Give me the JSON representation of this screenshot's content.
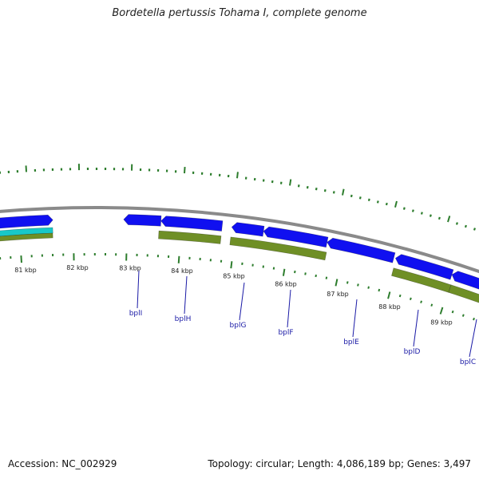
{
  "header": {
    "title": "Bordetella pertussis Tohama I, complete genome"
  },
  "footer": {
    "accession": "Accession: NC_002929",
    "summary": "Topology: circular; Length: 4,086,189 bp; Genes: 3,497"
  },
  "colors": {
    "backbone": "#8a8a8a",
    "forward_cds": "#1010f0",
    "reverse_feature": "#6f8f26",
    "tick": "#2d7d2d",
    "label": "#1a1aa6",
    "extra_feature": "#18c8c8"
  },
  "kbp_labels": [
    "81 kbp",
    "82 kbp",
    "83 kbp",
    "84 kbp",
    "85 kbp",
    "86 kbp",
    "87 kbp",
    "88 kbp",
    "89 kbp"
  ],
  "genes": [
    {
      "label": "bplI"
    },
    {
      "label": "bplH"
    },
    {
      "label": "bplG"
    },
    {
      "label": "bplF"
    },
    {
      "label": "bplE"
    },
    {
      "label": "bplD"
    },
    {
      "label": "bplC"
    }
  ]
}
